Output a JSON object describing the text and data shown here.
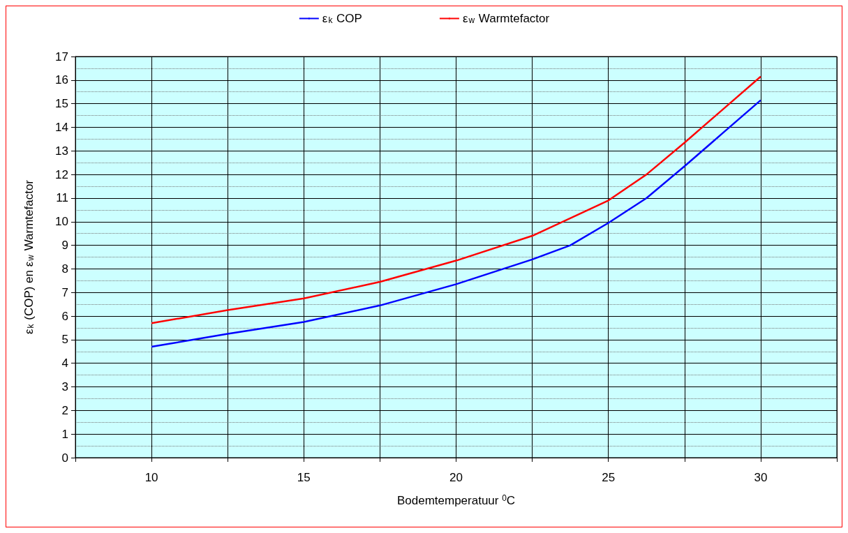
{
  "chart_data": {
    "type": "line",
    "xlabel": "Bodemtemperatuur $^{0}$C",
    "ylabel": "ε$_{k}$ (COP) en ε$_{w}$ Warmtefactor",
    "series": [
      {
        "name": "ε$_{k}$ COP",
        "color": "#0000ff",
        "x": [
          10,
          12.5,
          15,
          17.5,
          20,
          22.5,
          23.75,
          25,
          26.25,
          27.5,
          28.75,
          30
        ],
        "values": [
          4.7,
          5.25,
          5.75,
          6.45,
          7.35,
          8.4,
          9.0,
          9.95,
          11.0,
          12.35,
          13.75,
          15.15
        ]
      },
      {
        "name": "ε$_{w}$ Warmtefactor",
        "color": "#ff0000",
        "x": [
          10,
          12.5,
          15,
          17.5,
          20,
          22.5,
          24.25,
          25,
          26.25,
          27.5,
          28.75,
          30
        ],
        "values": [
          5.7,
          6.25,
          6.75,
          7.45,
          8.35,
          9.4,
          10.45,
          10.9,
          12.0,
          13.35,
          14.75,
          16.15
        ]
      }
    ],
    "xlim": [
      7.5,
      32.5
    ],
    "xticks": [
      {
        "value": 7.5,
        "label": null
      },
      10,
      {
        "value": 12.5,
        "label": null
      },
      15,
      {
        "value": 17.5,
        "label": null
      },
      20,
      {
        "value": 22.5,
        "label": null
      },
      25,
      {
        "value": 27.5,
        "label": null
      },
      30,
      {
        "value": 32.5,
        "label": null
      }
    ],
    "ylim": [
      0,
      17
    ],
    "yticks": [
      0,
      1,
      2,
      3,
      4,
      5,
      6,
      7,
      8,
      9,
      10,
      11,
      12,
      13,
      14,
      15,
      16,
      17
    ],
    "grid": true,
    "legend": "top",
    "marker": "none",
    "line_style": "solid"
  }
}
